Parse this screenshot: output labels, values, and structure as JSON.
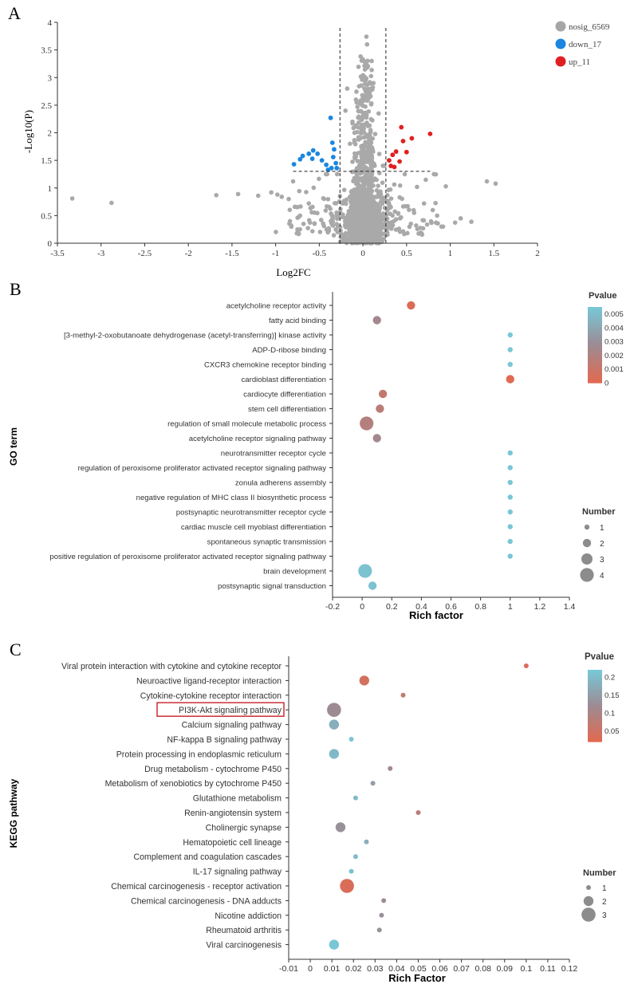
{
  "chart_data": [
    {
      "panel": "A",
      "type": "scatter",
      "xlabel": "Log2FC",
      "ylabel": "-Log10(P)",
      "xlim": [
        -3.5,
        2
      ],
      "ylim": [
        0,
        4
      ],
      "xticks": [
        "-3.5",
        "-3",
        "-2.5",
        "-2",
        "-1.5",
        "-1",
        "-0.5",
        "0",
        "0.5",
        "1",
        "1.5",
        "2"
      ],
      "yticks": [
        "0",
        "0.5",
        "1",
        "1.5",
        "2",
        "2.5",
        "3",
        "3.5",
        "4"
      ],
      "thresholds": {
        "x": [
          -0.263,
          0.263
        ],
        "y": 1.301
      },
      "legend": [
        {
          "label": "nosig_6569",
          "color": "#a6a6a6"
        },
        {
          "label": "down_17",
          "color": "#1a86e0"
        },
        {
          "label": "up_11",
          "color": "#e02020"
        }
      ],
      "down_points": [
        [
          -0.79,
          1.43
        ],
        [
          -0.72,
          1.52
        ],
        [
          -0.69,
          1.58
        ],
        [
          -0.62,
          1.62
        ],
        [
          -0.57,
          1.68
        ],
        [
          -0.52,
          1.62
        ],
        [
          -0.58,
          1.53
        ],
        [
          -0.47,
          1.5
        ],
        [
          -0.42,
          1.42
        ],
        [
          -0.4,
          1.33
        ],
        [
          -0.36,
          1.36
        ],
        [
          -0.34,
          1.56
        ],
        [
          -0.33,
          1.7
        ],
        [
          -0.35,
          1.82
        ],
        [
          -0.37,
          2.27
        ],
        [
          -0.31,
          1.45
        ],
        [
          -0.3,
          1.36
        ]
      ],
      "up_points": [
        [
          0.3,
          1.5
        ],
        [
          0.32,
          1.4
        ],
        [
          0.34,
          1.6
        ],
        [
          0.36,
          1.38
        ],
        [
          0.38,
          1.66
        ],
        [
          0.42,
          1.48
        ],
        [
          0.44,
          2.1
        ],
        [
          0.46,
          1.85
        ],
        [
          0.5,
          1.65
        ],
        [
          0.56,
          1.9
        ],
        [
          0.77,
          1.98
        ]
      ]
    },
    {
      "panel": "B",
      "type": "scatter",
      "xlabel": "Rich factor",
      "ylabel": "GO term",
      "xlim": [
        -0.2,
        1.4
      ],
      "xticks": [
        "-0.2",
        "0",
        "0.2",
        "0.4",
        "0.6",
        "0.8",
        "1",
        "1.2",
        "1.4"
      ],
      "color_legend": {
        "title": "Pvalue",
        "ticks": [
          "0.005",
          "0.004",
          "0.003",
          "0.002",
          "0.001",
          "0"
        ],
        "max": 0.0055,
        "low_color": "#e06a52",
        "high_color": "#79c6d6"
      },
      "size_legend": {
        "title": "Number",
        "ticks": [
          "1",
          "2",
          "3",
          "4"
        ]
      },
      "terms": [
        {
          "name": "acetylcholine receptor activity",
          "rich": 0.33,
          "number": 2,
          "p": 0.0002
        },
        {
          "name": "fatty acid binding",
          "rich": 0.1,
          "number": 2,
          "p": 0.0025
        },
        {
          "name": "[3-methyl-2-oxobutanoate dehydrogenase (acetyl-transferring)] kinase activity",
          "rich": 1.0,
          "number": 1,
          "p": 0.0055
        },
        {
          "name": "ADP-D-ribose binding",
          "rich": 1.0,
          "number": 1,
          "p": 0.0055
        },
        {
          "name": "CXCR3 chemokine receptor binding",
          "rich": 1.0,
          "number": 1,
          "p": 0.0055
        },
        {
          "name": "cardioblast differentiation",
          "rich": 1.0,
          "number": 2,
          "p": 0.0
        },
        {
          "name": "cardiocyte differentiation",
          "rich": 0.14,
          "number": 2,
          "p": 0.0012
        },
        {
          "name": "stem cell differentiation",
          "rich": 0.12,
          "number": 2,
          "p": 0.0016
        },
        {
          "name": "regulation of small molecule metabolic process",
          "rich": 0.03,
          "number": 4,
          "p": 0.0018
        },
        {
          "name": "acetylcholine receptor signaling pathway",
          "rich": 0.1,
          "number": 2,
          "p": 0.0025
        },
        {
          "name": "neurotransmitter receptor cycle",
          "rich": 1.0,
          "number": 1,
          "p": 0.0055
        },
        {
          "name": "regulation of peroxisome proliferator activated receptor signaling pathway",
          "rich": 1.0,
          "number": 1,
          "p": 0.0055
        },
        {
          "name": "zonula adherens assembly",
          "rich": 1.0,
          "number": 1,
          "p": 0.0055
        },
        {
          "name": "negative regulation of MHC class II biosynthetic process",
          "rich": 1.0,
          "number": 1,
          "p": 0.0055
        },
        {
          "name": "postsynaptic neurotransmitter receptor cycle",
          "rich": 1.0,
          "number": 1,
          "p": 0.0055
        },
        {
          "name": "cardiac muscle cell myoblast differentiation",
          "rich": 1.0,
          "number": 1,
          "p": 0.0055
        },
        {
          "name": "spontaneous synaptic transmission",
          "rich": 1.0,
          "number": 1,
          "p": 0.0055
        },
        {
          "name": "positive regulation of peroxisome proliferator activated receptor signaling pathway",
          "rich": 1.0,
          "number": 1,
          "p": 0.0055
        },
        {
          "name": "brain development",
          "rich": 0.02,
          "number": 4,
          "p": 0.0053
        },
        {
          "name": "postsynaptic signal transduction",
          "rich": 0.07,
          "number": 2,
          "p": 0.0053
        }
      ]
    },
    {
      "panel": "C",
      "type": "scatter",
      "xlabel": "Rich Factor",
      "ylabel": "KEGG pathway",
      "xlim": [
        -0.01,
        0.12
      ],
      "xticks": [
        "-0.01",
        "0",
        "0.01",
        "0.02",
        "0.03",
        "0.04",
        "0.05",
        "0.06",
        "0.07",
        "0.08",
        "0.09",
        "0.1",
        "0.11",
        "0.12"
      ],
      "color_legend": {
        "title": "Pvalue",
        "ticks": [
          "0.2",
          "0.15",
          "0.1",
          "0.05"
        ],
        "min": 0.02,
        "max": 0.22,
        "low_color": "#e06a52",
        "high_color": "#79c6d6"
      },
      "size_legend": {
        "title": "Number",
        "ticks": [
          "1",
          "2",
          "3"
        ]
      },
      "highlight": "PI3K-Akt signaling pathway",
      "pathways": [
        {
          "name": "Viral protein interaction with cytokine and cytokine receptor",
          "rich": 0.1,
          "number": 1,
          "p": 0.03
        },
        {
          "name": "Neuroactive ligand-receptor interaction",
          "rich": 0.025,
          "number": 2,
          "p": 0.04
        },
        {
          "name": "Cytokine-cytokine receptor interaction",
          "rich": 0.043,
          "number": 1,
          "p": 0.07
        },
        {
          "name": "PI3K-Akt signaling pathway",
          "rich": 0.011,
          "number": 3,
          "p": 0.12
        },
        {
          "name": "Calcium signaling pathway",
          "rich": 0.011,
          "number": 2,
          "p": 0.18
        },
        {
          "name": "NF-kappa B signaling pathway",
          "rich": 0.019,
          "number": 1,
          "p": 0.22
        },
        {
          "name": "Protein processing in endoplasmic reticulum",
          "rich": 0.011,
          "number": 2,
          "p": 0.2
        },
        {
          "name": "Drug metabolism - cytochrome P450",
          "rich": 0.037,
          "number": 1,
          "p": 0.11
        },
        {
          "name": "Metabolism of xenobiotics by cytochrome P450",
          "rich": 0.029,
          "number": 1,
          "p": 0.15
        },
        {
          "name": "Glutathione metabolism",
          "rich": 0.021,
          "number": 1,
          "p": 0.2
        },
        {
          "name": "Renin-angiotensin system",
          "rich": 0.05,
          "number": 1,
          "p": 0.08
        },
        {
          "name": "Cholinergic synapse",
          "rich": 0.014,
          "number": 2,
          "p": 0.13
        },
        {
          "name": "Hematopoietic cell lineage",
          "rich": 0.026,
          "number": 1,
          "p": 0.18
        },
        {
          "name": "Complement and coagulation cascades",
          "rich": 0.021,
          "number": 1,
          "p": 0.2
        },
        {
          "name": "IL-17 signaling pathway",
          "rich": 0.019,
          "number": 1,
          "p": 0.21
        },
        {
          "name": "Chemical carcinogenesis - receptor activation",
          "rich": 0.017,
          "number": 3,
          "p": 0.03
        },
        {
          "name": "Chemical carcinogenesis - DNA adducts",
          "rich": 0.034,
          "number": 1,
          "p": 0.12
        },
        {
          "name": "Nicotine addiction",
          "rich": 0.033,
          "number": 1,
          "p": 0.13
        },
        {
          "name": "Rheumatoid arthritis",
          "rich": 0.032,
          "number": 1,
          "p": 0.13
        },
        {
          "name": "Viral carcinogenesis",
          "rich": 0.011,
          "number": 2,
          "p": 0.22
        }
      ]
    }
  ],
  "panel_labels": {
    "a": "A",
    "b": "B",
    "c": "C"
  }
}
